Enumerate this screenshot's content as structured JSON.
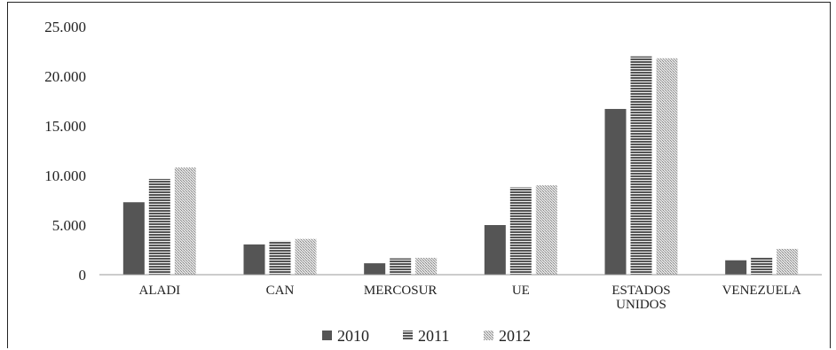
{
  "chart_data": {
    "type": "bar",
    "categories": [
      "ALADI",
      "CAN",
      "MERCOSUR",
      "UE",
      "ESTADOS UNIDOS",
      "VENEZUELA"
    ],
    "series": [
      {
        "name": "2010",
        "values": [
          7300,
          3050,
          1150,
          5000,
          16700,
          1450
        ]
      },
      {
        "name": "2011",
        "values": [
          9650,
          3400,
          1650,
          8800,
          22000,
          1750
        ]
      },
      {
        "name": "2012",
        "values": [
          10800,
          3600,
          1700,
          9000,
          21800,
          2600
        ]
      }
    ],
    "ylim": [
      0,
      25000
    ],
    "yticks": [
      "0",
      "5.000",
      "10.000",
      "15.000",
      "20.000",
      "25.000"
    ],
    "legend_position": "bottom",
    "grid": false,
    "colors": {
      "2010": "#555555",
      "2011": "#5a5a5a",
      "2012": "#bdbdbd"
    }
  }
}
